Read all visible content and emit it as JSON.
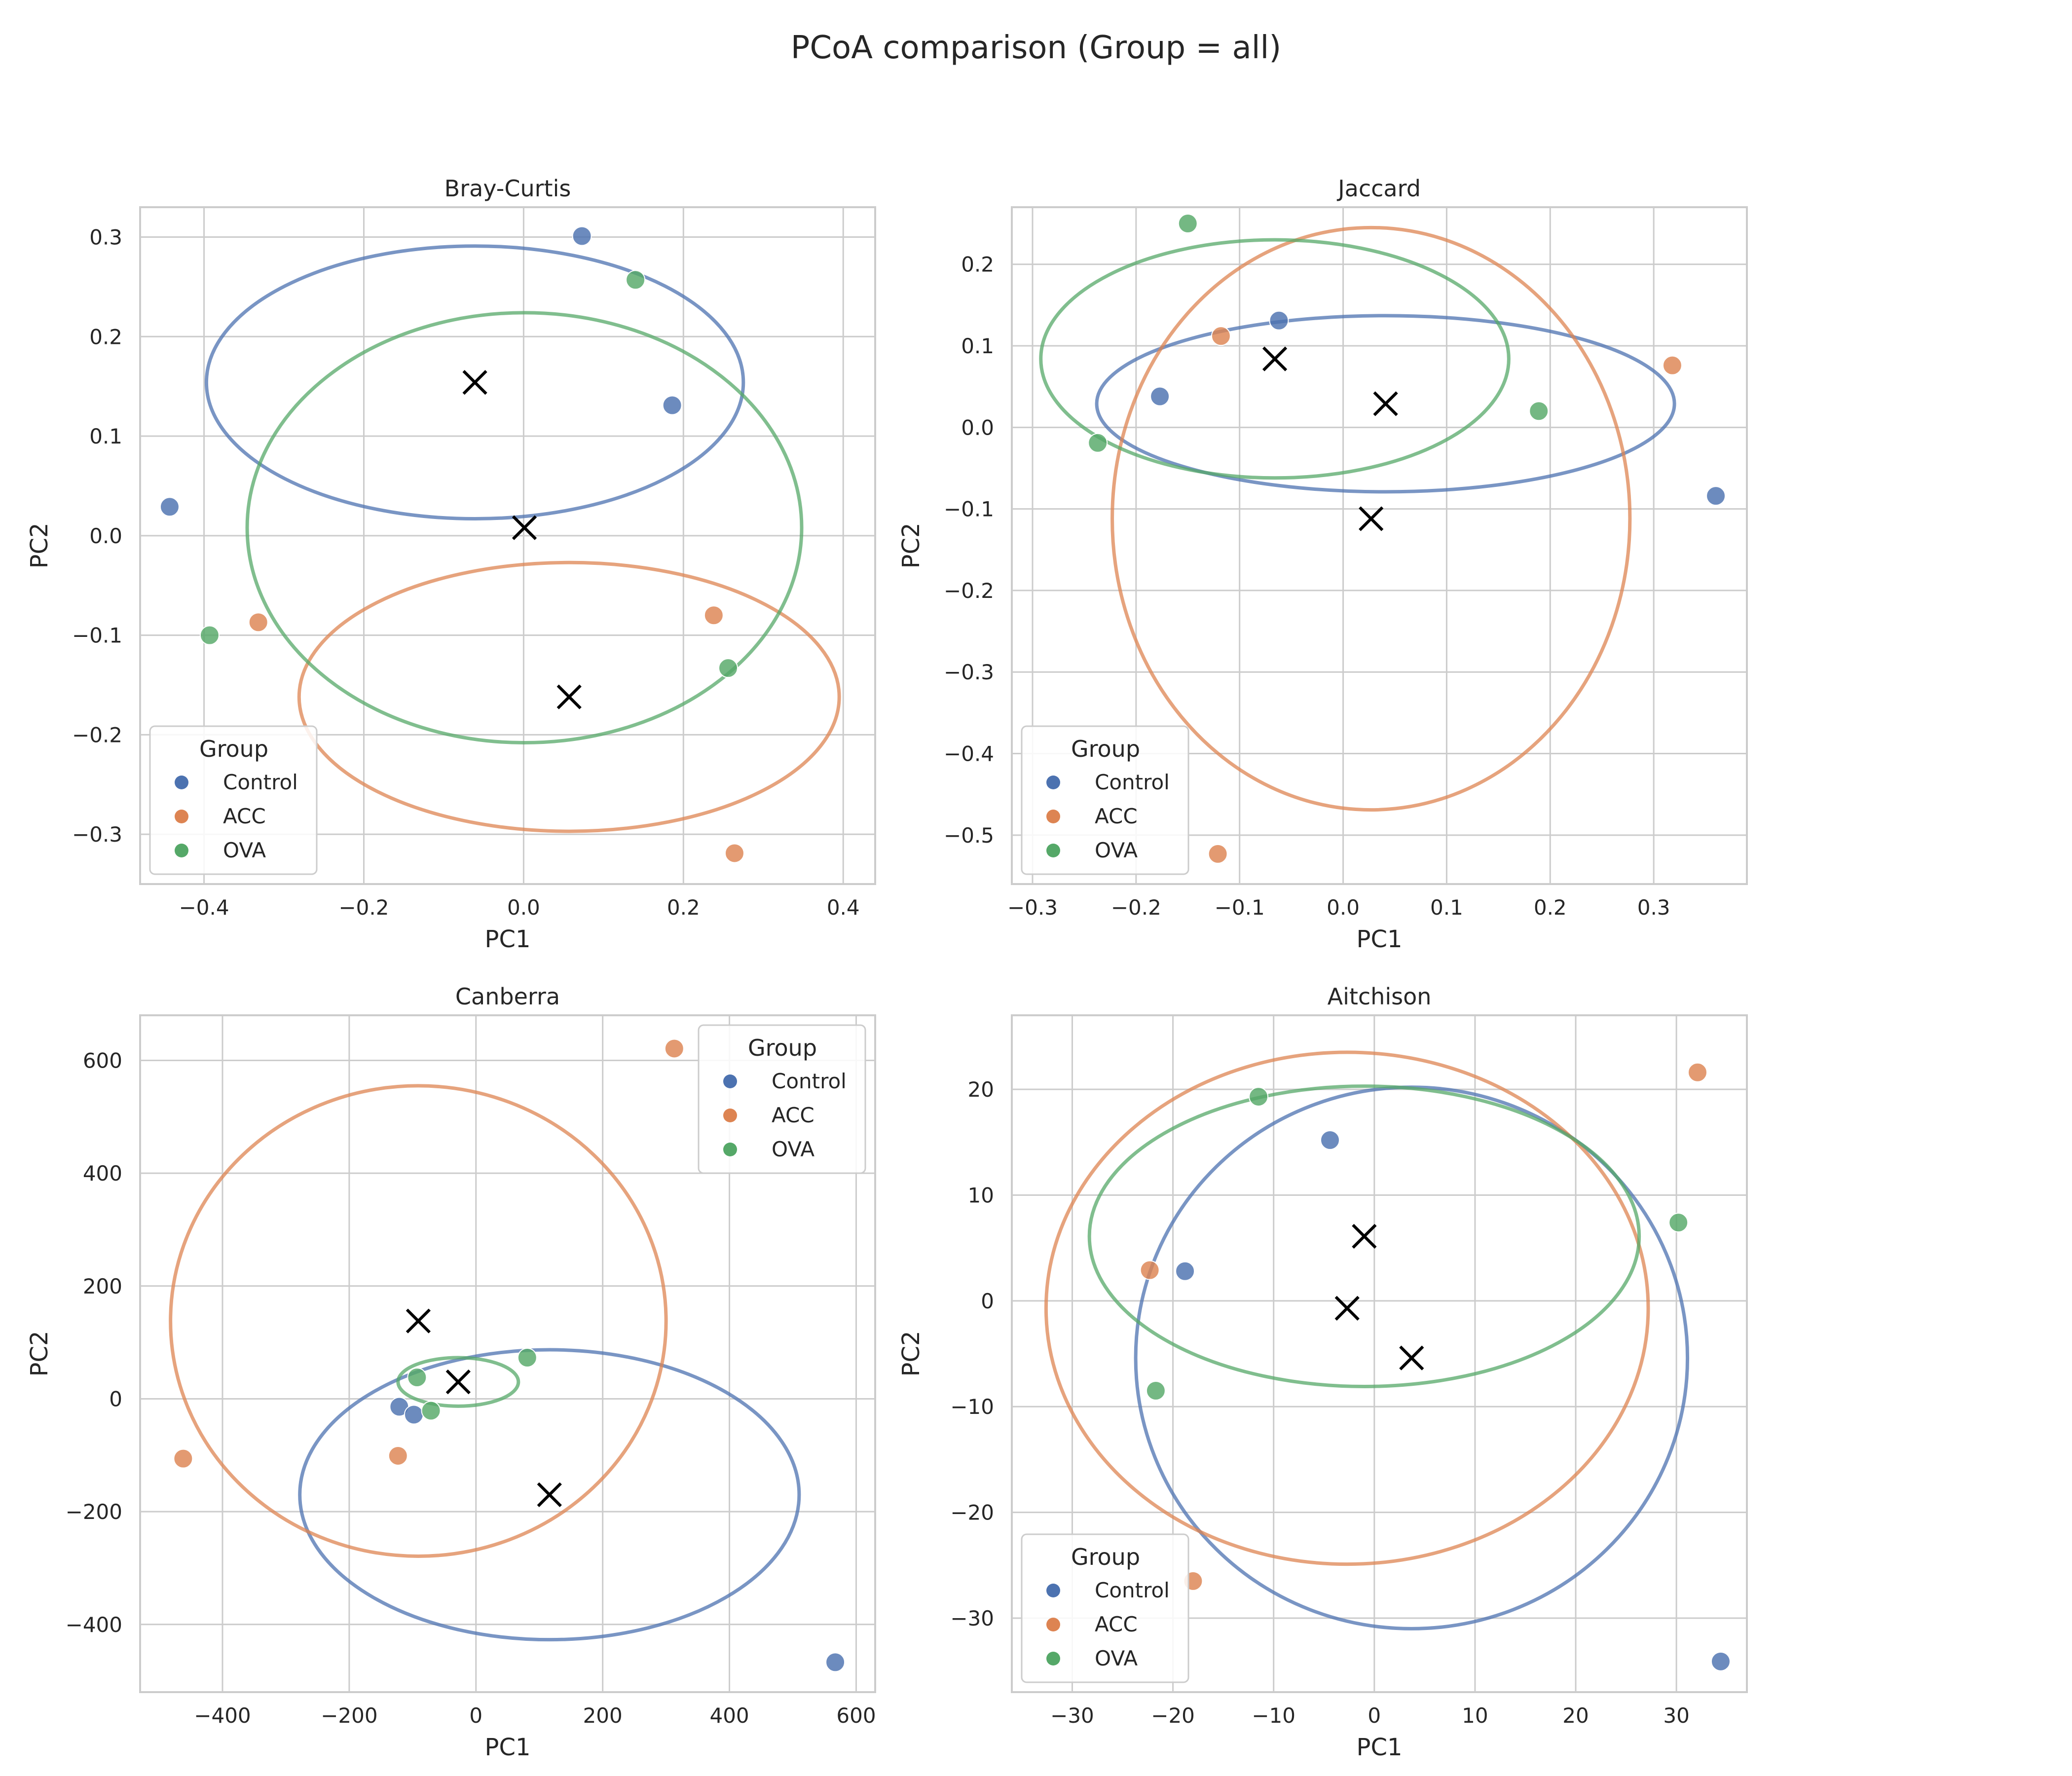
{
  "figure": {
    "suptitle": "PCoA comparison (Group = all)"
  },
  "colors": {
    "Control": "#4c72b0",
    "ACC": "#dd8452",
    "OVA": "#55a868",
    "centroid": "#000000",
    "grid": "#cccccc",
    "background": "#ffffff"
  },
  "chart_data": [
    {
      "type": "scatter",
      "title": "Bray-Curtis",
      "xlabel": "PC1",
      "ylabel": "PC2",
      "xlim": [
        -0.48,
        0.44
      ],
      "ylim": [
        -0.35,
        0.33
      ],
      "xticks": [
        -0.4,
        -0.2,
        0.0,
        0.2,
        0.4
      ],
      "xtick_labels": [
        "−0.4",
        "−0.2",
        "0.0",
        "0.2",
        "0.4"
      ],
      "yticks": [
        -0.3,
        -0.2,
        -0.1,
        0.0,
        0.1,
        0.2,
        0.3
      ],
      "ytick_labels": [
        "−0.3",
        "−0.2",
        "−0.1",
        "0.0",
        "0.1",
        "0.2",
        "0.3"
      ],
      "grid": true,
      "legend": {
        "title": "Group",
        "position": "lower-left",
        "entries": [
          "Control",
          "ACC",
          "OVA"
        ]
      },
      "series": [
        {
          "name": "Control",
          "points": [
            [
              0.073,
              0.301
            ],
            [
              0.186,
              0.131
            ],
            [
              -0.443,
              0.029
            ]
          ],
          "centroid": [
            -0.061,
            0.154
          ],
          "ellipse": {
            "rx": 0.336,
            "ry": 0.137
          }
        },
        {
          "name": "ACC",
          "points": [
            [
              0.238,
              -0.08
            ],
            [
              -0.332,
              -0.087
            ],
            [
              0.264,
              -0.319
            ]
          ],
          "centroid": [
            0.057,
            -0.162
          ],
          "ellipse": {
            "rx": 0.338,
            "ry": 0.135
          }
        },
        {
          "name": "OVA",
          "points": [
            [
              0.14,
              0.257
            ],
            [
              0.256,
              -0.133
            ],
            [
              -0.393,
              -0.1
            ]
          ],
          "centroid": [
            0.001,
            0.008
          ],
          "ellipse": {
            "rx": 0.347,
            "ry": 0.216
          }
        }
      ]
    },
    {
      "type": "scatter",
      "title": "Jaccard",
      "xlabel": "PC1",
      "ylabel": "PC2",
      "xlim": [
        -0.32,
        0.39
      ],
      "ylim": [
        -0.56,
        0.27
      ],
      "xticks": [
        -0.3,
        -0.2,
        -0.1,
        0.0,
        0.1,
        0.2,
        0.3
      ],
      "xtick_labels": [
        "−0.3",
        "−0.2",
        "−0.1",
        "0.0",
        "0.1",
        "0.2",
        "0.3"
      ],
      "yticks": [
        -0.5,
        -0.4,
        -0.3,
        -0.2,
        -0.1,
        0.0,
        0.1,
        0.2
      ],
      "ytick_labels": [
        "−0.5",
        "−0.4",
        "−0.3",
        "−0.2",
        "−0.1",
        "0.0",
        "0.1",
        "0.2"
      ],
      "grid": true,
      "legend": {
        "title": "Group",
        "position": "lower-left",
        "entries": [
          "Control",
          "ACC",
          "OVA"
        ]
      },
      "series": [
        {
          "name": "Control",
          "points": [
            [
              -0.062,
              0.131
            ],
            [
              -0.177,
              0.038
            ],
            [
              0.36,
              -0.084
            ]
          ],
          "centroid": [
            0.041,
            0.029
          ],
          "ellipse": {
            "rx": 0.279,
            "ry": 0.108
          }
        },
        {
          "name": "ACC",
          "points": [
            [
              -0.118,
              0.112
            ],
            [
              0.318,
              0.076
            ],
            [
              -0.121,
              -0.523
            ]
          ],
          "centroid": [
            0.027,
            -0.112
          ],
          "ellipse": {
            "rx": 0.25,
            "ry": 0.357
          }
        },
        {
          "name": "OVA",
          "points": [
            [
              -0.15,
              0.25
            ],
            [
              -0.237,
              -0.019
            ],
            [
              0.189,
              0.02
            ]
          ],
          "centroid": [
            -0.066,
            0.084
          ],
          "ellipse": {
            "rx": 0.226,
            "ry": 0.146
          }
        }
      ]
    },
    {
      "type": "scatter",
      "title": "Canberra",
      "xlabel": "PC1",
      "ylabel": "PC2",
      "xlim": [
        -530,
        630
      ],
      "ylim": [
        -520,
        680
      ],
      "xticks": [
        -400,
        -200,
        0,
        200,
        400,
        600
      ],
      "xtick_labels": [
        "−400",
        "−200",
        "0",
        "200",
        "400",
        "600"
      ],
      "yticks": [
        -400,
        -200,
        0,
        200,
        400,
        600
      ],
      "ytick_labels": [
        "−400",
        "−200",
        "0",
        "200",
        "400",
        "600"
      ],
      "grid": true,
      "legend": {
        "title": "Group",
        "position": "upper-right",
        "entries": [
          "Control",
          "ACC",
          "OVA"
        ]
      },
      "series": [
        {
          "name": "Control",
          "points": [
            [
              -121,
              -14
            ],
            [
              -98,
              -28
            ],
            [
              567,
              -467
            ]
          ],
          "centroid": [
            116,
            -170
          ],
          "ellipse": {
            "rx": 394,
            "ry": 257
          }
        },
        {
          "name": "ACC",
          "points": [
            [
              313,
              621
            ],
            [
              -123,
              -101
            ],
            [
              -462,
              -106
            ]
          ],
          "centroid": [
            -91,
            138
          ],
          "ellipse": {
            "rx": 391,
            "ry": 417
          }
        },
        {
          "name": "OVA",
          "points": [
            [
              -93,
              38
            ],
            [
              -71,
              -21
            ],
            [
              81,
              73
            ]
          ],
          "centroid": [
            -28,
            30
          ],
          "ellipse": {
            "rx": 95,
            "ry": 43
          }
        }
      ]
    },
    {
      "type": "scatter",
      "title": "Aitchison",
      "xlabel": "PC1",
      "ylabel": "PC2",
      "xlim": [
        -36,
        37
      ],
      "ylim": [
        -37,
        27
      ],
      "xticks": [
        -30,
        -20,
        -10,
        0,
        10,
        20,
        30
      ],
      "xtick_labels": [
        "−30",
        "−20",
        "−10",
        "0",
        "10",
        "20",
        "30"
      ],
      "yticks": [
        -30,
        -20,
        -10,
        0,
        10,
        20
      ],
      "ytick_labels": [
        "−30",
        "−20",
        "−10",
        "0",
        "10",
        "20"
      ],
      "grid": true,
      "legend": {
        "title": "Group",
        "position": "lower-left",
        "entries": [
          "Control",
          "ACC",
          "OVA"
        ]
      },
      "series": [
        {
          "name": "Control",
          "points": [
            [
              -4.4,
              15.2
            ],
            [
              -18.8,
              2.8
            ],
            [
              34.4,
              -34.1
            ]
          ],
          "centroid": [
            3.7,
            -5.4
          ],
          "ellipse": {
            "rx": 27.4,
            "ry": 25.6
          }
        },
        {
          "name": "ACC",
          "points": [
            [
              32.1,
              21.6
            ],
            [
              -22.3,
              2.9
            ],
            [
              -18.0,
              -26.5
            ]
          ],
          "centroid": [
            -2.7,
            -0.7
          ],
          "ellipse": {
            "rx": 29.9,
            "ry": 24.2
          }
        },
        {
          "name": "OVA",
          "points": [
            [
              -11.5,
              19.3
            ],
            [
              30.2,
              7.4
            ],
            [
              -21.7,
              -8.5
            ]
          ],
          "centroid": [
            -1.0,
            6.1
          ],
          "ellipse": {
            "rx": 27.3,
            "ry": 14.2
          }
        }
      ]
    }
  ]
}
